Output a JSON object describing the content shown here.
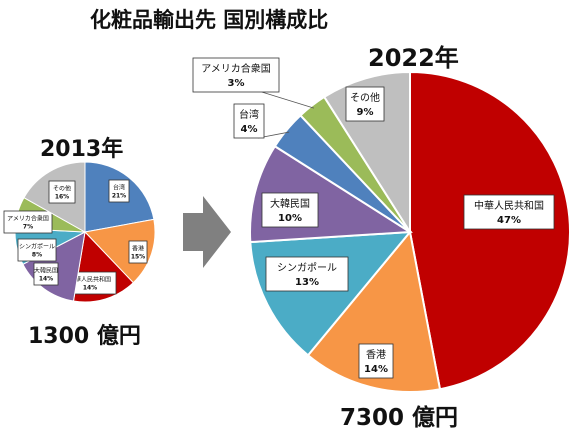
{
  "title": "化粧品輸出先 国別構成比",
  "colors": {
    "中華人民共和国": "#C00000",
    "香港": "#F79646",
    "シンガポール": "#4BACC6",
    "大韓民国": "#8064A2",
    "台湾": "#4F81BD",
    "アメリカ合衆国": "#9BBB59",
    "その他": "#BFBFBF",
    "arrow": "#808080"
  },
  "chart_data": [
    {
      "type": "pie",
      "title": "2013年",
      "total_label": "1300 億円",
      "slices": [
        {
          "name": "台湾",
          "value": 21,
          "label": "21%"
        },
        {
          "name": "香港",
          "value": 15,
          "label": "15%"
        },
        {
          "name": "中華人民共和国",
          "value": 14,
          "label": "14%"
        },
        {
          "name": "大韓民国",
          "value": 14,
          "label": "14%"
        },
        {
          "name": "シンガポール",
          "value": 8,
          "label": "8%"
        },
        {
          "name": "アメリカ合衆国",
          "value": 7,
          "label": "7%"
        },
        {
          "name": "その他",
          "value": 16,
          "label": "16%"
        }
      ]
    },
    {
      "type": "pie",
      "title": "2022年",
      "total_label": "7300 億円",
      "slices": [
        {
          "name": "中華人民共和国",
          "value": 47,
          "label": "47%"
        },
        {
          "name": "香港",
          "value": 14,
          "label": "14%"
        },
        {
          "name": "シンガポール",
          "value": 13,
          "label": "13%"
        },
        {
          "name": "大韓民国",
          "value": 10,
          "label": "10%"
        },
        {
          "name": "台湾",
          "value": 4,
          "label": "4%"
        },
        {
          "name": "アメリカ合衆国",
          "value": 3,
          "label": "3%"
        },
        {
          "name": "その他",
          "value": 9,
          "label": "9%"
        }
      ]
    }
  ]
}
